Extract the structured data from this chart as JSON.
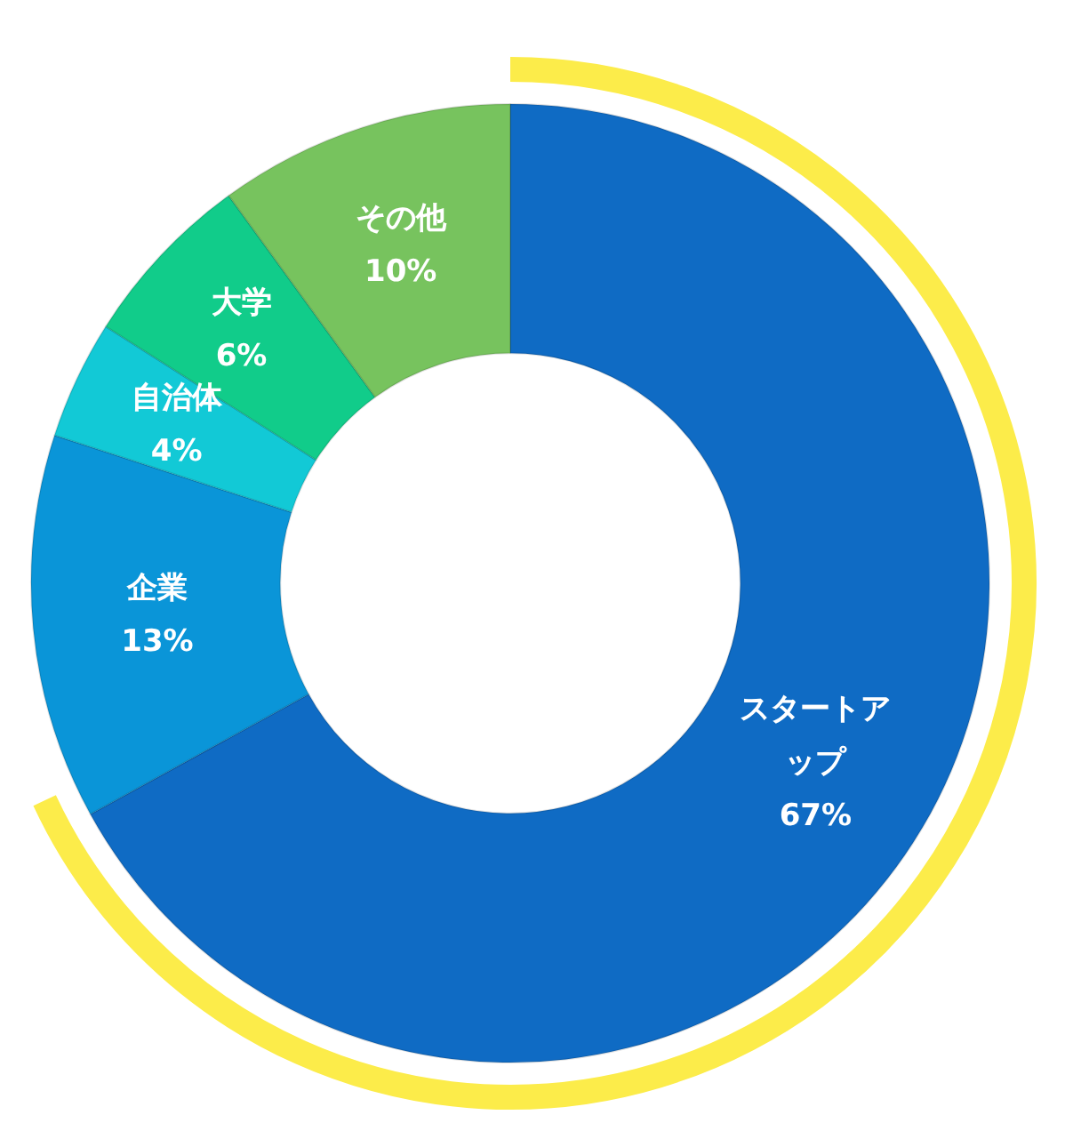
{
  "chart_data": {
    "type": "donut",
    "categories": [
      "スタートアップ",
      "企業",
      "自治体",
      "大学",
      "その他"
    ],
    "values": [
      67,
      13,
      4,
      6,
      10
    ],
    "colors": [
      "#0f6bc4",
      "#0a95d8",
      "#12c9d6",
      "#11cc8a",
      "#77c35e"
    ],
    "value_labels": [
      "67%",
      "13%",
      "4%",
      "6%",
      "10%"
    ],
    "legend": false
  }
}
